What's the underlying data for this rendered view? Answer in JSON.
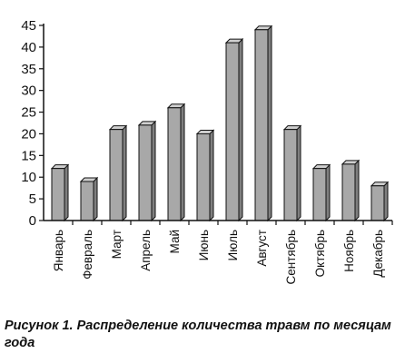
{
  "chart_data": {
    "type": "bar",
    "categories": [
      "Январь",
      "Февраль",
      "Март",
      "Апрель",
      "Май",
      "Июнь",
      "Июль",
      "Август",
      "Сентябрь",
      "Октябрь",
      "Ноябрь",
      "Декабрь"
    ],
    "values": [
      12,
      9,
      21,
      22,
      26,
      20,
      41,
      44,
      21,
      12,
      13,
      8
    ],
    "title": "",
    "xlabel": "",
    "ylabel": "",
    "ylim": [
      0,
      45
    ],
    "yticks": [
      "0",
      "5",
      "10",
      "15",
      "20",
      "25",
      "30",
      "35",
      "40",
      "45"
    ],
    "grid": false,
    "bar_color": "#a8a8a8",
    "bar_edge_color": "#111111"
  },
  "caption": "Рисунок 1. Распределение количества травм по месяцам года"
}
